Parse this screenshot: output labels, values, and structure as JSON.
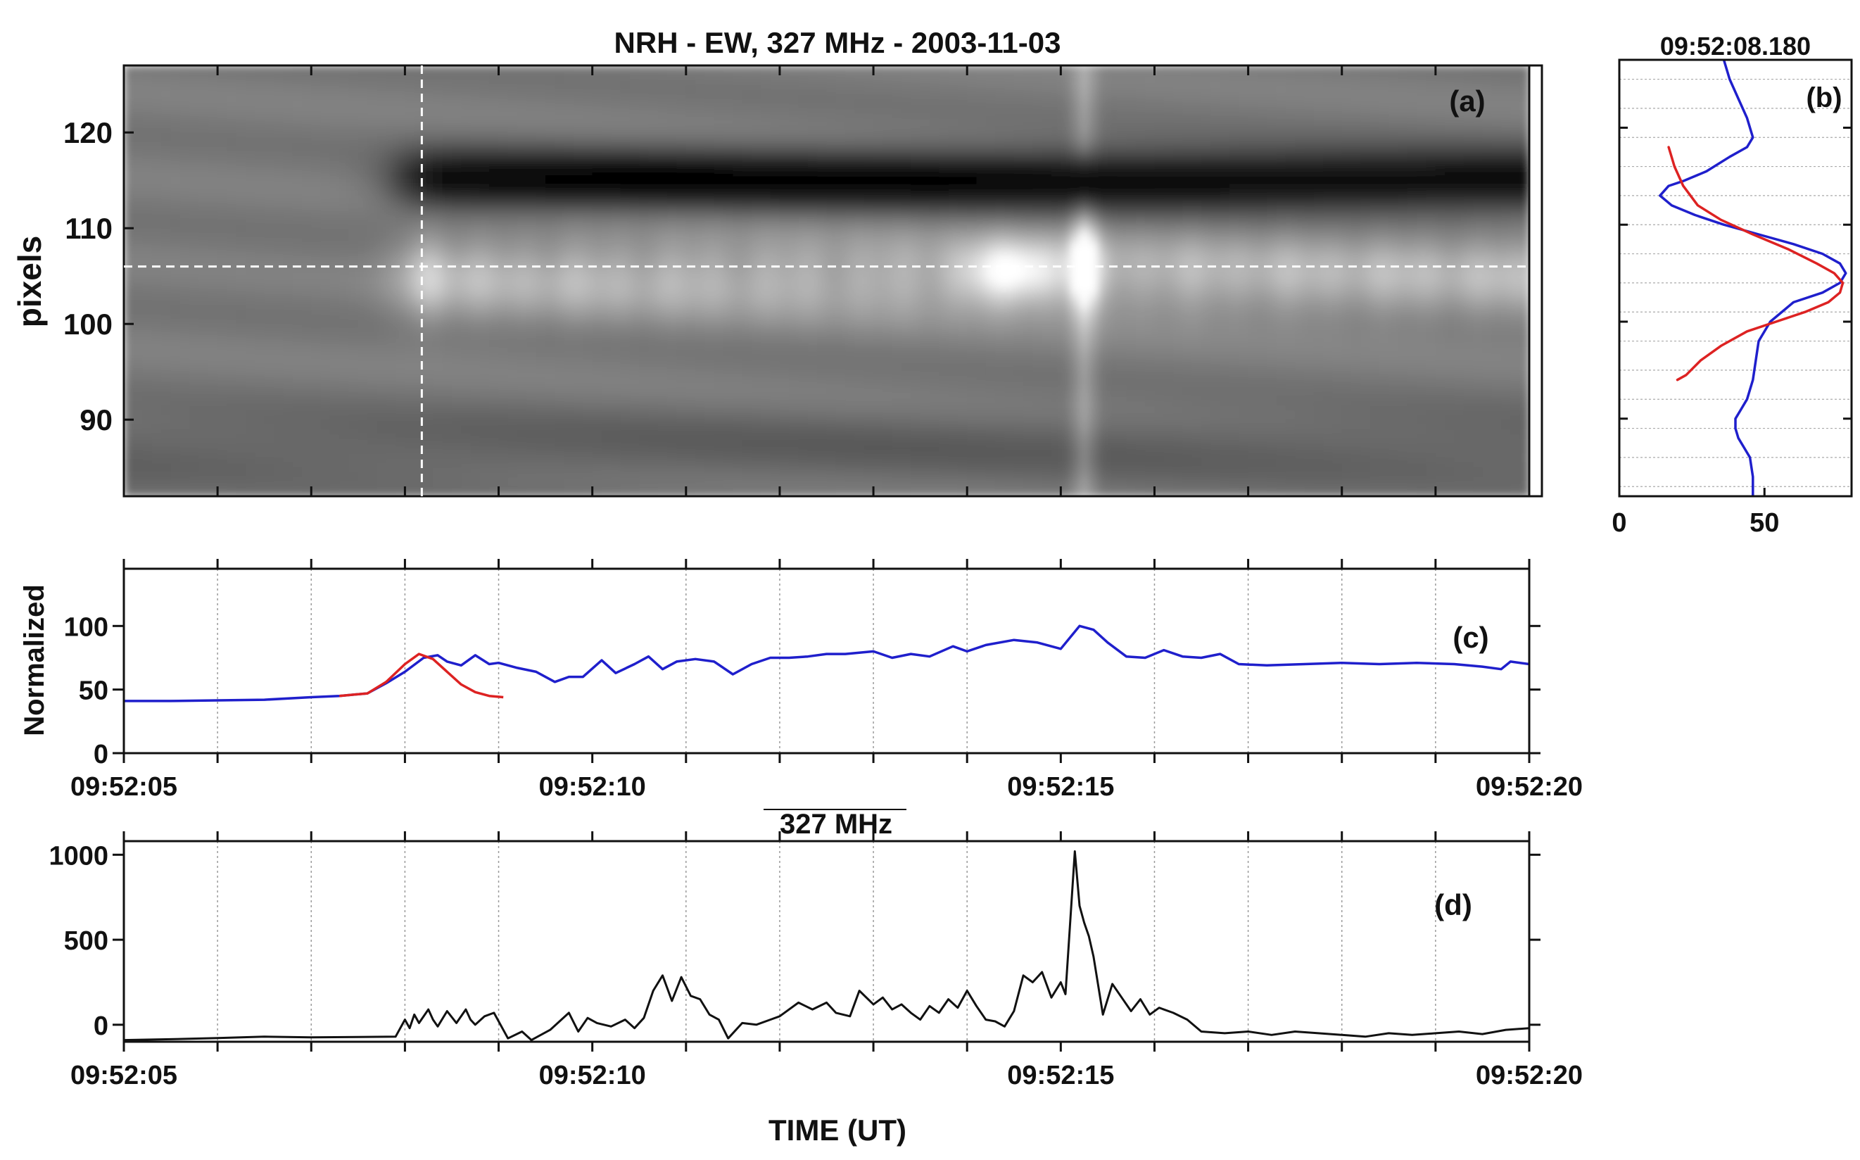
{
  "colors": {
    "blue": "#1f1fcc",
    "red": "#dd2222",
    "black": "#111111",
    "grid": "#999999"
  },
  "chart_data": [
    {
      "panel": "(a)",
      "type": "heatmap",
      "title": "NRH - EW, 327 MHz  -  2003-11-03",
      "ylabel": "pixels",
      "ylim": [
        82,
        127
      ],
      "xlim": [
        5,
        20
      ],
      "yticks": [
        90,
        100,
        110,
        120
      ],
      "ytick_labels": [
        "90",
        "100",
        "110",
        "120"
      ],
      "crosshair": {
        "x": 8.18,
        "y": 106
      },
      "bands": [
        {
          "y": 115,
          "width": 3.2,
          "start": 7.9,
          "level": -1.0
        },
        {
          "y": 105,
          "width": 4.5,
          "start": 7.9,
          "level": 0.6
        },
        {
          "y": 87,
          "width": 4,
          "start": 5,
          "level": -0.35
        }
      ],
      "hotspots": [
        {
          "x": 14.5,
          "y": 105.5,
          "level": 1.0
        },
        {
          "x": 15.25,
          "y": 106,
          "level": 1.0
        }
      ],
      "colormap": "gray"
    },
    {
      "panel": "(b)",
      "type": "line",
      "title": "09:52:08.180",
      "xlim": [
        0,
        80
      ],
      "ylim": [
        82,
        127
      ],
      "xticks": [
        0,
        50
      ],
      "xtick_labels": [
        "0",
        "50"
      ],
      "series": [
        {
          "color": "blue",
          "x": [
            36,
            38,
            41,
            44,
            46,
            44,
            38,
            30,
            22,
            17,
            14,
            18,
            26,
            36,
            48,
            60,
            70,
            76,
            78,
            76,
            70,
            60,
            52,
            48,
            47,
            46,
            44,
            42,
            40,
            40,
            41,
            43,
            45,
            46,
            46
          ],
          "y": [
            127,
            125,
            123,
            121,
            119,
            118,
            117,
            115.5,
            114.5,
            114,
            113,
            112,
            111,
            110,
            109,
            108,
            107,
            106,
            105,
            104,
            103,
            102,
            100,
            98,
            96,
            94,
            92,
            91,
            90,
            89,
            88,
            87,
            86,
            84,
            82
          ]
        },
        {
          "color": "red",
          "x": [
            17,
            19,
            22,
            27,
            35,
            46,
            58,
            68,
            74,
            77,
            76,
            72,
            64,
            54,
            44,
            35,
            28,
            23,
            20
          ],
          "y": [
            118,
            116,
            114,
            112,
            110.5,
            109,
            107.5,
            106,
            105,
            104,
            103,
            102,
            101,
            100,
            99,
            97.5,
            96,
            94.5,
            94
          ]
        }
      ]
    },
    {
      "panel": "(c)",
      "type": "line",
      "ylabel": "Normalized",
      "xlim": [
        5,
        20
      ],
      "ylim": [
        0,
        145
      ],
      "yticks": [
        0,
        50,
        100
      ],
      "ytick_labels": [
        "0",
        "50",
        "100"
      ],
      "xticks": [
        5,
        10,
        15,
        20
      ],
      "xtick_labels": [
        "09:52:05",
        "09:52:10",
        "09:52:15",
        "09:52:20"
      ],
      "gridlines": [
        6,
        7,
        8,
        9,
        11,
        12,
        13,
        14,
        16,
        17,
        18,
        19
      ],
      "series": [
        {
          "color": "blue",
          "x": [
            5,
            5.5,
            6,
            6.5,
            7,
            7.3,
            7.6,
            7.8,
            8.0,
            8.2,
            8.35,
            8.45,
            8.6,
            8.75,
            8.9,
            9.0,
            9.2,
            9.4,
            9.6,
            9.75,
            9.9,
            10.1,
            10.25,
            10.45,
            10.6,
            10.75,
            10.9,
            11.1,
            11.3,
            11.5,
            11.7,
            11.9,
            12.1,
            12.3,
            12.5,
            12.7,
            13.0,
            13.2,
            13.4,
            13.6,
            13.85,
            14.0,
            14.2,
            14.5,
            14.75,
            15.0,
            15.2,
            15.35,
            15.5,
            15.7,
            15.9,
            16.1,
            16.3,
            16.5,
            16.7,
            16.9,
            17.2,
            17.6,
            18.0,
            18.4,
            18.8,
            19.2,
            19.5,
            19.7,
            19.8,
            20
          ],
          "y": [
            41,
            41,
            41.5,
            42,
            44,
            45,
            47,
            55,
            64,
            75,
            77,
            72,
            69,
            77,
            70,
            71,
            67,
            64,
            56,
            60,
            60,
            73,
            63,
            70,
            76,
            66,
            72,
            74,
            72,
            62,
            70,
            75,
            75,
            76,
            78,
            78,
            80,
            75,
            78,
            76,
            84,
            80,
            85,
            89,
            87,
            82,
            100,
            97,
            87,
            76,
            75,
            81,
            76,
            75,
            78,
            70,
            69,
            70,
            71,
            70,
            71,
            70,
            68,
            66,
            72,
            70
          ]
        },
        {
          "color": "red",
          "x": [
            7.3,
            7.6,
            7.8,
            8.0,
            8.15,
            8.3,
            8.45,
            8.6,
            8.75,
            8.9,
            9.05
          ],
          "y": [
            45,
            47,
            56,
            70,
            78,
            74,
            64,
            54,
            48,
            45,
            44
          ]
        }
      ]
    },
    {
      "panel": "(d)",
      "type": "line",
      "title": "327 MHz",
      "xlabel": "TIME (UT)",
      "xlim": [
        5,
        20
      ],
      "ylim": [
        -100,
        1080
      ],
      "yticks": [
        0,
        500,
        1000
      ],
      "ytick_labels": [
        "0",
        "500",
        "1000"
      ],
      "xticks": [
        5,
        10,
        15,
        20
      ],
      "xtick_labels": [
        "09:52:05",
        "09:52:10",
        "09:52:15",
        "09:52:20"
      ],
      "gridlines": [
        6,
        7,
        8,
        9,
        11,
        12,
        13,
        14,
        16,
        17,
        18,
        19
      ],
      "series": [
        {
          "color": "black",
          "x": [
            5,
            5.5,
            6,
            6.5,
            7,
            7.5,
            7.9,
            8.0,
            8.05,
            8.1,
            8.15,
            8.25,
            8.3,
            8.35,
            8.45,
            8.55,
            8.65,
            8.7,
            8.75,
            8.85,
            8.95,
            9.1,
            9.25,
            9.35,
            9.55,
            9.75,
            9.85,
            9.95,
            10.05,
            10.2,
            10.35,
            10.45,
            10.55,
            10.65,
            10.75,
            10.85,
            10.95,
            11.05,
            11.15,
            11.25,
            11.35,
            11.45,
            11.6,
            11.75,
            11.9,
            12.0,
            12.2,
            12.35,
            12.5,
            12.6,
            12.75,
            12.85,
            13.0,
            13.1,
            13.2,
            13.3,
            13.4,
            13.5,
            13.6,
            13.7,
            13.8,
            13.9,
            14.0,
            14.1,
            14.2,
            14.3,
            14.4,
            14.5,
            14.6,
            14.7,
            14.8,
            14.9,
            15.0,
            15.05,
            15.15,
            15.2,
            15.25,
            15.3,
            15.35,
            15.45,
            15.55,
            15.65,
            15.75,
            15.85,
            15.95,
            16.05,
            16.2,
            16.35,
            16.5,
            16.75,
            17.0,
            17.25,
            17.5,
            17.75,
            18.0,
            18.25,
            18.5,
            18.75,
            19.0,
            19.25,
            19.5,
            19.75,
            20
          ],
          "y": [
            -90,
            -85,
            -78,
            -70,
            -74,
            -72,
            -70,
            30,
            -20,
            60,
            10,
            90,
            30,
            -10,
            80,
            10,
            90,
            30,
            0,
            50,
            70,
            -80,
            -40,
            -90,
            -30,
            70,
            -40,
            40,
            10,
            -10,
            30,
            -20,
            40,
            200,
            290,
            140,
            280,
            170,
            150,
            60,
            30,
            -80,
            10,
            0,
            30,
            50,
            130,
            90,
            130,
            70,
            50,
            200,
            120,
            160,
            90,
            120,
            70,
            30,
            110,
            70,
            150,
            100,
            200,
            110,
            30,
            20,
            -10,
            80,
            290,
            250,
            310,
            160,
            250,
            180,
            1020,
            700,
            600,
            520,
            400,
            60,
            240,
            160,
            80,
            150,
            60,
            100,
            70,
            30,
            -40,
            -50,
            -40,
            -60,
            -40,
            -50,
            -60,
            -70,
            -50,
            -60,
            -50,
            -40,
            -55,
            -30,
            -20
          ]
        }
      ]
    }
  ],
  "annotations": {
    "a": "(a)",
    "b": "(b)",
    "c": "(c)",
    "d": "(d)"
  }
}
